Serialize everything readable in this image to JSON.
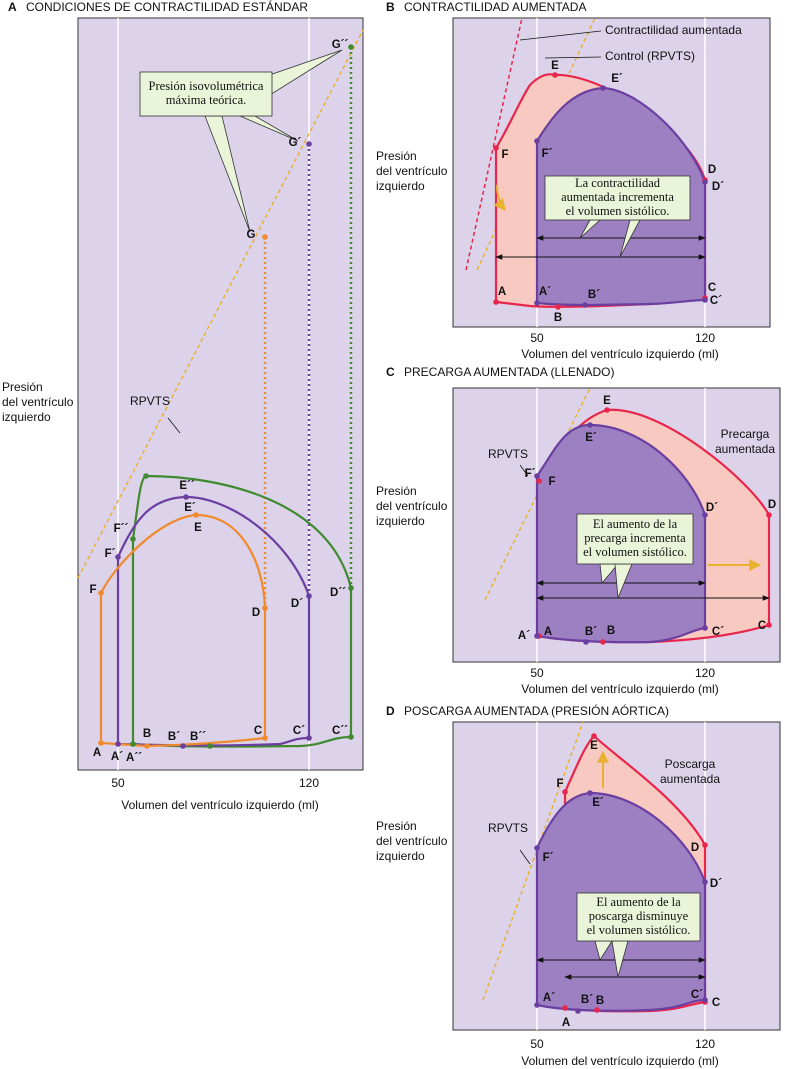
{
  "panels": [
    {
      "letter": "A",
      "title": "CONDICIONES DE CONTRACTILIDAD ESTÁNDAR",
      "y_label": [
        "Presión",
        "del ventrículo",
        "izquierdo"
      ],
      "x_label": "Volumen del ventrículo izquierdo (ml)",
      "x_ticks": [
        "50",
        "120"
      ],
      "rpvts": "RPVTS",
      "callout": [
        "Presión isovolumétrica",
        "máxima teórica."
      ],
      "points": [
        "A",
        "B",
        "C",
        "D",
        "E",
        "F",
        "G",
        "A´",
        "B´",
        "C´",
        "D´",
        "E´",
        "F´",
        "G´",
        "A´´",
        "B´´",
        "C´´",
        "D´´",
        "E´´",
        "F´´",
        "G´´"
      ]
    },
    {
      "letter": "B",
      "title": "CONTRACTILIDAD AUMENTADA",
      "y_label": [
        "Presión",
        "del ventrículo",
        "izquierdo"
      ],
      "x_label": "Volumen del ventrículo izquierdo (ml)",
      "x_ticks": [
        "50",
        "120"
      ],
      "legend": [
        "Contractilidad aumentada",
        "Control (RPVTS)"
      ],
      "callout": [
        "La contractilidad",
        "aumentada incrementa",
        "el volumen sistólico."
      ],
      "points": [
        "A",
        "B",
        "C",
        "D",
        "E",
        "F",
        "A´",
        "B´",
        "C´",
        "D´",
        "E´",
        "F´"
      ]
    },
    {
      "letter": "C",
      "title": "PRECARGA AUMENTADA (LLENADO)",
      "y_label": [
        "Presión",
        "del ventrículo",
        "izquierdo"
      ],
      "x_label": "Volumen del ventrículo izquierdo (ml)",
      "x_ticks": [
        "50",
        "120"
      ],
      "rpvts": "RPVTS",
      "note": [
        "Precarga",
        "aumentada"
      ],
      "callout": [
        "El aumento de la",
        "precarga incrementa",
        "el volumen sistólico."
      ],
      "points": [
        "A",
        "B",
        "C",
        "D",
        "E",
        "F",
        "A´",
        "B´",
        "C´",
        "D´",
        "E´",
        "F´"
      ]
    },
    {
      "letter": "D",
      "title": "POSCARGA AUMENTADA (PRESIÓN AÓRTICA)",
      "y_label": [
        "Presión",
        "del ventrículo",
        "izquierdo"
      ],
      "x_label": "Volumen del ventrículo izquierdo (ml)",
      "x_ticks": [
        "50",
        "120"
      ],
      "rpvts": "RPVTS",
      "note": [
        "Poscarga",
        "aumentada"
      ],
      "callout": [
        "El aumento de la",
        "poscarga disminuye",
        "el volumen sistólico."
      ],
      "points": [
        "A",
        "B",
        "C",
        "D",
        "E",
        "F",
        "A´",
        "B´",
        "C´",
        "D´",
        "E´",
        "F´"
      ]
    }
  ]
}
